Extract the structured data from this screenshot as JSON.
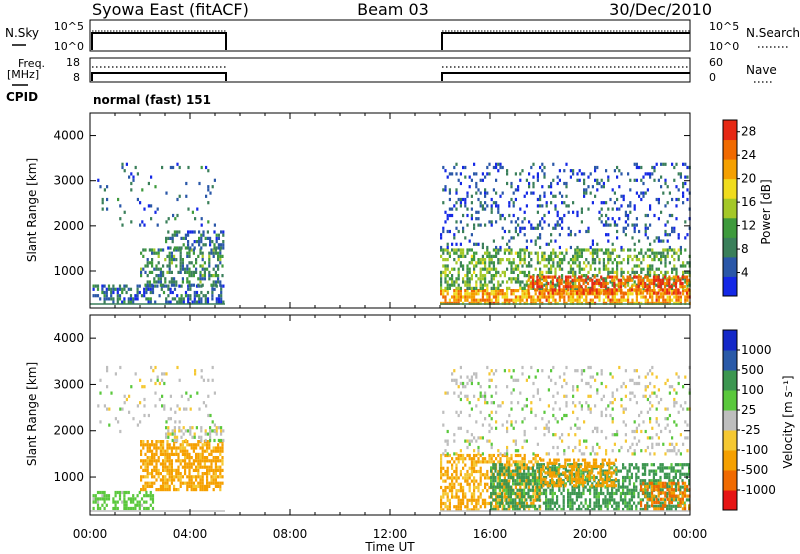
{
  "header": {
    "station": "Syowa East (fitACF)",
    "beam": "Beam 03",
    "date": "30/Dec/2010"
  },
  "top_panels": {
    "nsky_label": "N.Sky",
    "nsearch_label": "N.Search",
    "noise_ticks": [
      "10^5",
      "10^0"
    ],
    "noise_ticks_right": [
      "10^5",
      "10^0"
    ],
    "freq_label_1": "Freq.",
    "freq_label_2": "[MHz]",
    "freq_ticks": [
      "18",
      "8"
    ],
    "nave_label": "Nave",
    "nave_ticks": [
      "60",
      "0"
    ],
    "cpid_label": "CPID",
    "cpid_value": "normal (fast) 151"
  },
  "colors": {
    "power": [
      "#1428e6",
      "#2a57a8",
      "#3a7f5a",
      "#3e9a3c",
      "#a4c828",
      "#f0dc1e",
      "#f5a000",
      "#f06a00",
      "#e62814"
    ],
    "velocity": [
      "#e61414",
      "#f06a00",
      "#f5a000",
      "#f5c832",
      "#bebebe",
      "#5ac83c",
      "#3c9650",
      "#2a5aa8",
      "#1428c8"
    ]
  },
  "chart_data": [
    {
      "type": "heatmap",
      "name": "power",
      "xlabel": "Time UT",
      "ylabel": "Slant Range [km]",
      "xlim": [
        0,
        24
      ],
      "ylim": [
        180,
        4500
      ],
      "xticks": [
        "00:00",
        "04:00",
        "08:00",
        "12:00",
        "16:00",
        "20:00",
        "00:00"
      ],
      "yticks": [
        1000,
        2000,
        3000,
        4000
      ],
      "colorbar_label": "Power [dB]",
      "colorbar_ticks": [
        4,
        8,
        12,
        16,
        20,
        24,
        28
      ],
      "colorbar_range": [
        0,
        30
      ],
      "data_intervals_hours": [
        [
          0.0,
          5.4
        ],
        [
          14.0,
          24.0
        ]
      ],
      "blobs": [
        {
          "t0": 0.1,
          "t1": 5.3,
          "r0": 300,
          "r1": 700,
          "value": 6,
          "density": 0.55
        },
        {
          "t0": 2.0,
          "t1": 5.3,
          "r0": 700,
          "r1": 1500,
          "value": 9,
          "density": 0.5
        },
        {
          "t0": 3.0,
          "t1": 5.3,
          "r0": 1500,
          "r1": 1900,
          "value": 7,
          "density": 0.5
        },
        {
          "t0": 0.2,
          "t1": 5.0,
          "r0": 2000,
          "r1": 3400,
          "value": 6,
          "density": 0.08
        },
        {
          "t0": 14.0,
          "t1": 24.0,
          "r0": 250,
          "r1": 600,
          "value": 22,
          "density": 0.75
        },
        {
          "t0": 14.0,
          "t1": 24.0,
          "r0": 600,
          "r1": 1500,
          "value": 12,
          "density": 0.5
        },
        {
          "t0": 17.5,
          "t1": 24.0,
          "r0": 500,
          "r1": 900,
          "value": 26,
          "density": 0.6
        },
        {
          "t0": 14.0,
          "t1": 24.0,
          "r0": 1500,
          "r1": 3400,
          "value": 5,
          "density": 0.18
        }
      ]
    },
    {
      "type": "heatmap",
      "name": "velocity",
      "xlabel": "Time UT",
      "ylabel": "Slant Range [km]",
      "xlim": [
        0,
        24
      ],
      "ylim": [
        180,
        4500
      ],
      "xticks": [
        "00:00",
        "04:00",
        "08:00",
        "12:00",
        "16:00",
        "20:00",
        "00:00"
      ],
      "yticks": [
        1000,
        2000,
        3000,
        4000
      ],
      "colorbar_label": "Velocity [m s⁻¹]",
      "colorbar_ticks": [
        "-1000",
        "-500",
        "-100",
        "-25",
        "25",
        "100",
        "500",
        "1000"
      ],
      "data_intervals_hours": [
        [
          0.0,
          5.4
        ],
        [
          14.0,
          24.0
        ]
      ],
      "blobs": [
        {
          "t0": 2.0,
          "t1": 5.3,
          "r0": 700,
          "r1": 1800,
          "value": -150,
          "density": 0.65
        },
        {
          "t0": 0.1,
          "t1": 2.5,
          "r0": 300,
          "r1": 700,
          "value": 60,
          "density": 0.5
        },
        {
          "t0": 3.0,
          "t1": 5.3,
          "r0": 1800,
          "r1": 2100,
          "value": 0,
          "density": 0.5
        },
        {
          "t0": 0.2,
          "t1": 5.0,
          "r0": 2000,
          "r1": 3400,
          "value": 0,
          "density": 0.08
        },
        {
          "t0": 14.0,
          "t1": 18.0,
          "r0": 300,
          "r1": 1500,
          "value": -120,
          "density": 0.55
        },
        {
          "t0": 16.0,
          "t1": 24.0,
          "r0": 300,
          "r1": 1300,
          "value": 150,
          "density": 0.6
        },
        {
          "t0": 18.0,
          "t1": 21.0,
          "r0": 800,
          "r1": 1400,
          "value": -200,
          "density": 0.5
        },
        {
          "t0": 22.0,
          "t1": 24.0,
          "r0": 300,
          "r1": 900,
          "value": -600,
          "density": 0.5
        },
        {
          "t0": 14.0,
          "t1": 24.0,
          "r0": 1500,
          "r1": 3400,
          "value": 0,
          "density": 0.15
        }
      ]
    }
  ]
}
